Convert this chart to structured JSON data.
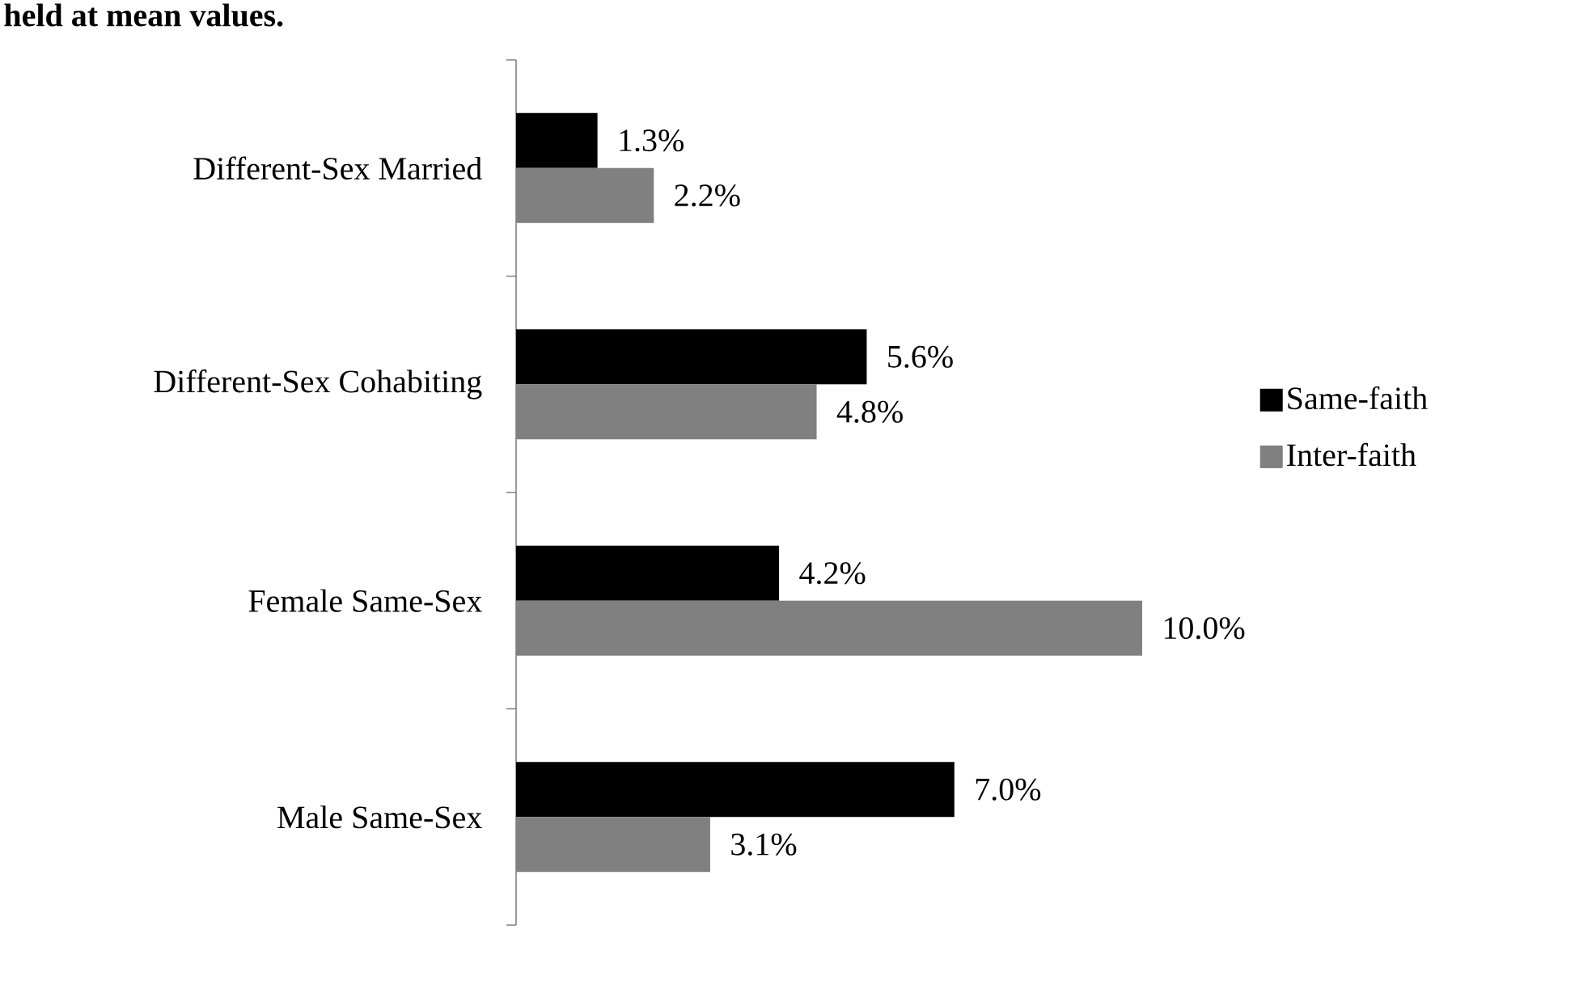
{
  "chart_data": {
    "type": "bar",
    "orientation": "horizontal",
    "title": "held at mean values.",
    "categories": [
      "Different-Sex Married",
      "Different-Sex Cohabiting",
      "Female Same-Sex",
      "Male Same-Sex"
    ],
    "series": [
      {
        "name": "Same-faith",
        "color": "#000000",
        "values": [
          1.3,
          5.6,
          4.2,
          7.0
        ],
        "value_labels": [
          "1.3%",
          "5.6%",
          "4.2%",
          "7.0%"
        ]
      },
      {
        "name": "Inter-faith",
        "color": "#808080",
        "values": [
          2.2,
          4.8,
          10.0,
          3.1
        ],
        "value_labels": [
          "2.2%",
          "4.8%",
          "10.0%",
          "3.1%"
        ]
      }
    ],
    "legend": "right",
    "tick_labels": "y"
  }
}
